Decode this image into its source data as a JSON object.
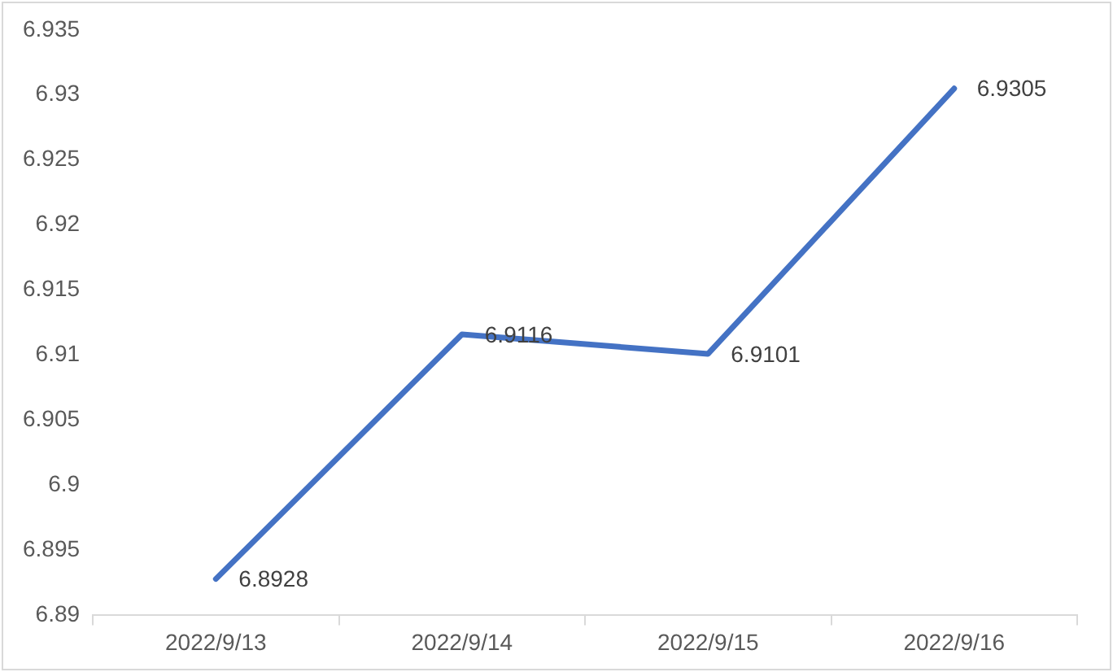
{
  "chart_data": {
    "type": "line",
    "categories": [
      "2022/9/13",
      "2022/9/14",
      "2022/9/15",
      "2022/9/16"
    ],
    "values": [
      6.8928,
      6.9116,
      6.9101,
      6.9305
    ],
    "color": "#4472c4",
    "ylim": [
      6.89,
      6.935
    ],
    "yticks": [
      6.89,
      6.895,
      6.9,
      6.905,
      6.91,
      6.915,
      6.92,
      6.925,
      6.93,
      6.935
    ],
    "data_labels": true,
    "marker": "none",
    "line_style": "solid"
  }
}
